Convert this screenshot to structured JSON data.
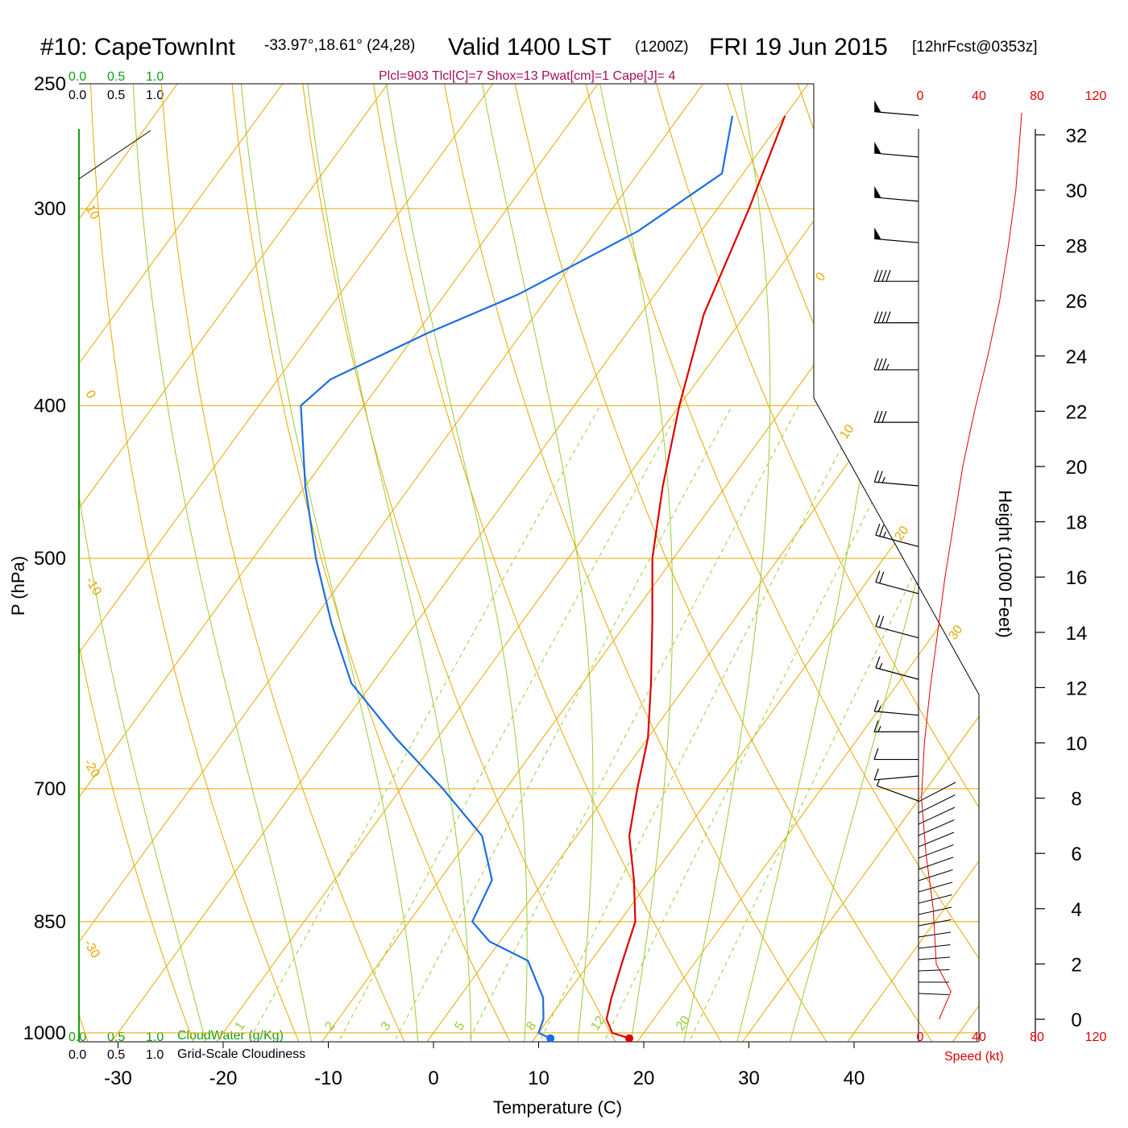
{
  "header": {
    "station": "#10: CapeTownInt",
    "coords": "-33.97°,18.61° (24,28)",
    "valid": "Valid 1400 LST",
    "utc": "(1200Z)",
    "date": "FRI 19 Jun 2015",
    "forecast": "[12hrFcst@0353z]"
  },
  "indices": "Plcl=903 Tlcl[C]=7 Shox=13 Pwat[cm]=1 Cape[J]= 4",
  "colors": {
    "temperature": "#e00000",
    "dewpoint": "#1a6ee0",
    "isotherm": "#e8a800",
    "dry_adiabat": "#e8a800",
    "moist_adiabat": "#99cc33",
    "mixing_ratio": "#99cc33",
    "cloudwater": "#10a010",
    "wind_speed": "#e00000"
  },
  "cloud_scale": {
    "cloudwater_ticks": [
      "0.0",
      "0.5",
      "1.0"
    ],
    "cloudiness_ticks": [
      "0.0",
      "0.5",
      "1.0"
    ],
    "cloudwater_label": "CloudWater (g/Kg)",
    "cloudiness_label": "Grid-Scale Cloudiness"
  },
  "chart_data": {
    "type": "line",
    "title": "#10: CapeTownInt",
    "xlabel": "Temperature (C)",
    "ylabel": "P (hPa)",
    "y2label": "Height (1000 Feet)",
    "speed_label": "Speed (kt)",
    "x_ticks": [
      "-30",
      "-20",
      "-10",
      "0",
      "10",
      "20",
      "30",
      "40"
    ],
    "p_ticks": [
      {
        "p": 250,
        "label": "250"
      },
      {
        "p": 300,
        "label": "300"
      },
      {
        "p": 400,
        "label": "400"
      },
      {
        "p": 500,
        "label": "500"
      },
      {
        "p": 700,
        "label": "700"
      },
      {
        "p": 850,
        "label": "850"
      },
      {
        "p": 1000,
        "label": "1000"
      }
    ],
    "height_ticks": [
      {
        "kft": 32,
        "label": "32"
      },
      {
        "kft": 30,
        "label": "30"
      },
      {
        "kft": 28,
        "label": "28"
      },
      {
        "kft": 26,
        "label": "26"
      },
      {
        "kft": 24,
        "label": "24"
      },
      {
        "kft": 22,
        "label": "22"
      },
      {
        "kft": 20,
        "label": "20"
      },
      {
        "kft": 18,
        "label": "18"
      },
      {
        "kft": 16,
        "label": "16"
      },
      {
        "kft": 14,
        "label": "14"
      },
      {
        "kft": 12,
        "label": "12"
      },
      {
        "kft": 10,
        "label": "10"
      },
      {
        "kft": 8,
        "label": "8"
      },
      {
        "kft": 6,
        "label": "6"
      },
      {
        "kft": 4,
        "label": "4"
      },
      {
        "kft": 2,
        "label": "2"
      },
      {
        "kft": 0,
        "label": "0"
      }
    ],
    "speed_ticks": [
      "0",
      "40",
      "80",
      "120"
    ],
    "isotherm_labels": [
      "10",
      "0",
      "-10",
      "-20",
      "-30",
      "0",
      "10",
      "20",
      "30"
    ],
    "mixing_ratio_labels": [
      "1",
      "2",
      "3",
      "5",
      "8",
      "12",
      "20"
    ],
    "series": [
      {
        "name": "Temperature",
        "points": [
          {
            "p": 262,
            "t": -30
          },
          {
            "p": 300,
            "t": -27
          },
          {
            "p": 350,
            "t": -24
          },
          {
            "p": 400,
            "t": -20
          },
          {
            "p": 450,
            "t": -16
          },
          {
            "p": 500,
            "t": -12
          },
          {
            "p": 550,
            "t": -7.5
          },
          {
            "p": 600,
            "t": -3.5
          },
          {
            "p": 650,
            "t": 0
          },
          {
            "p": 700,
            "t": 2.5
          },
          {
            "p": 750,
            "t": 5
          },
          {
            "p": 800,
            "t": 8.5
          },
          {
            "p": 850,
            "t": 11.5
          },
          {
            "p": 900,
            "t": 13
          },
          {
            "p": 950,
            "t": 14.5
          },
          {
            "p": 980,
            "t": 15.5
          },
          {
            "p": 1000,
            "t": 17
          },
          {
            "p": 1008,
            "t": 19
          }
        ]
      },
      {
        "name": "Dewpoint",
        "points": [
          {
            "p": 262,
            "t": -35
          },
          {
            "p": 285,
            "t": -32
          },
          {
            "p": 310,
            "t": -36
          },
          {
            "p": 340,
            "t": -43
          },
          {
            "p": 360,
            "t": -49
          },
          {
            "p": 385,
            "t": -55
          },
          {
            "p": 400,
            "t": -56
          },
          {
            "p": 450,
            "t": -50
          },
          {
            "p": 500,
            "t": -44
          },
          {
            "p": 550,
            "t": -38
          },
          {
            "p": 600,
            "t": -32
          },
          {
            "p": 650,
            "t": -24
          },
          {
            "p": 700,
            "t": -16
          },
          {
            "p": 750,
            "t": -9
          },
          {
            "p": 800,
            "t": -5
          },
          {
            "p": 850,
            "t": -4
          },
          {
            "p": 875,
            "t": -1
          },
          {
            "p": 900,
            "t": 4
          },
          {
            "p": 950,
            "t": 8
          },
          {
            "p": 980,
            "t": 9.5
          },
          {
            "p": 1000,
            "t": 10
          },
          {
            "p": 1008,
            "t": 11.5
          }
        ]
      }
    ],
    "wind_barbs": [
      {
        "kft": 32.7,
        "dir": 275,
        "speed": 50
      },
      {
        "kft": 31.2,
        "dir": 275,
        "speed": 50
      },
      {
        "kft": 29.6,
        "dir": 275,
        "speed": 50
      },
      {
        "kft": 28.1,
        "dir": 275,
        "speed": 50
      },
      {
        "kft": 26.7,
        "dir": 270,
        "speed": 40
      },
      {
        "kft": 25.2,
        "dir": 270,
        "speed": 40
      },
      {
        "kft": 23.5,
        "dir": 270,
        "speed": 35
      },
      {
        "kft": 21.6,
        "dir": 270,
        "speed": 30
      },
      {
        "kft": 19.3,
        "dir": 275,
        "speed": 25
      },
      {
        "kft": 17.1,
        "dir": 285,
        "speed": 25
      },
      {
        "kft": 15.4,
        "dir": 285,
        "speed": 20
      },
      {
        "kft": 13.8,
        "dir": 285,
        "speed": 20
      },
      {
        "kft": 12.3,
        "dir": 285,
        "speed": 15
      },
      {
        "kft": 11.0,
        "dir": 275,
        "speed": 15
      },
      {
        "kft": 10.4,
        "dir": 270,
        "speed": 15
      },
      {
        "kft": 9.4,
        "dir": 270,
        "speed": 10
      },
      {
        "kft": 8.8,
        "dir": 265,
        "speed": 10
      },
      {
        "kft": 7.9,
        "dir": 290,
        "speed": 5
      }
    ],
    "wind_speed_profile": [
      {
        "kft": 0,
        "kt": 14
      },
      {
        "kft": 1,
        "kt": 22
      },
      {
        "kft": 2,
        "kt": 12
      },
      {
        "kft": 4,
        "kt": 10
      },
      {
        "kft": 6,
        "kt": 5
      },
      {
        "kft": 8,
        "kt": 2
      },
      {
        "kft": 10,
        "kt": 4
      },
      {
        "kft": 12,
        "kt": 8
      },
      {
        "kft": 14,
        "kt": 13
      },
      {
        "kft": 16,
        "kt": 18
      },
      {
        "kft": 18,
        "kt": 24
      },
      {
        "kft": 20,
        "kt": 30
      },
      {
        "kft": 22,
        "kt": 38
      },
      {
        "kft": 24,
        "kt": 47
      },
      {
        "kft": 26,
        "kt": 55
      },
      {
        "kft": 28,
        "kt": 61
      },
      {
        "kft": 30,
        "kt": 66
      },
      {
        "kft": 32.8,
        "kt": 70
      }
    ],
    "surface_markers": [
      {
        "name": "Surface Temperature",
        "t": 19
      },
      {
        "name": "Surface Dewpoint",
        "t": 11.5
      }
    ],
    "xlim": [
      -35,
      45
    ],
    "plim": [
      250,
      1030
    ],
    "grid": true
  }
}
